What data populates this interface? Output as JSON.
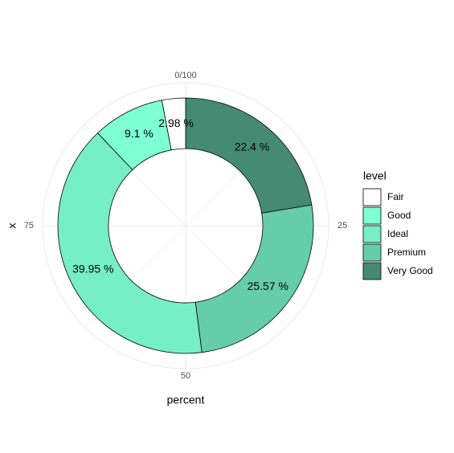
{
  "chart_data": {
    "type": "donut",
    "x_label": "percent",
    "y_label": "x",
    "legend_title": "level",
    "categories": [
      "Fair",
      "Good",
      "Ideal",
      "Premium",
      "Very Good"
    ],
    "values": [
      2.98,
      9.1,
      39.95,
      25.57,
      22.4
    ],
    "value_labels": [
      "2.98 %",
      "9.1 %",
      "39.95 %",
      "25.57 %",
      "22.4 %"
    ],
    "colors": [
      "#ffffff",
      "#7fffd4",
      "#76eec6",
      "#66cdaa",
      "#458b74"
    ],
    "xlim": [
      0,
      100
    ],
    "xticks": [
      {
        "value": 0,
        "label": "0/100"
      },
      25,
      50,
      75
    ],
    "grid": true
  }
}
